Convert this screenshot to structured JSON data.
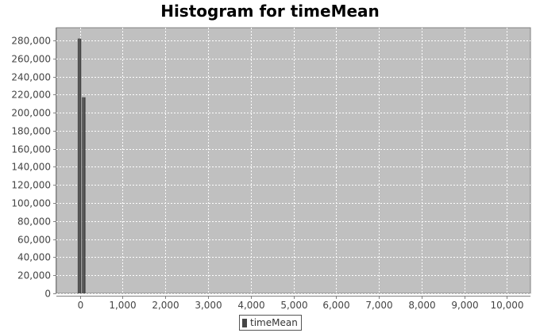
{
  "chart_data": {
    "type": "bar",
    "title": "Histogram for timeMean",
    "xlabel": "",
    "ylabel": "",
    "xlim": [
      -550,
      10550
    ],
    "ylim": [
      0,
      294000
    ],
    "x_ticks": [
      0,
      1000,
      2000,
      3000,
      4000,
      5000,
      6000,
      7000,
      8000,
      9000,
      10000
    ],
    "x_tick_labels": [
      "0",
      "1,000",
      "2,000",
      "3,000",
      "4,000",
      "5,000",
      "6,000",
      "7,000",
      "8,000",
      "9,000",
      "10,000"
    ],
    "y_ticks": [
      0,
      20000,
      40000,
      60000,
      80000,
      100000,
      120000,
      140000,
      160000,
      180000,
      200000,
      220000,
      240000,
      260000,
      280000
    ],
    "y_tick_labels": [
      "0",
      "20,000",
      "40,000",
      "60,000",
      "80,000",
      "100,000",
      "120,000",
      "140,000",
      "160,000",
      "180,000",
      "200,000",
      "220,000",
      "240,000",
      "260,000",
      "280,000"
    ],
    "bin_width": 100,
    "series": [
      {
        "name": "timeMean",
        "bins": [
          {
            "x0": -50,
            "x1": 50,
            "value": 282000
          },
          {
            "x0": 50,
            "x1": 150,
            "value": 217000
          }
        ]
      }
    ],
    "grid": true,
    "legend_position": "bottom-center",
    "colors": {
      "plot_background": "#c0c0c0",
      "grid": "#ffffff",
      "bar": "#464646",
      "axis": "#808080",
      "tick_label": "#444444"
    }
  }
}
